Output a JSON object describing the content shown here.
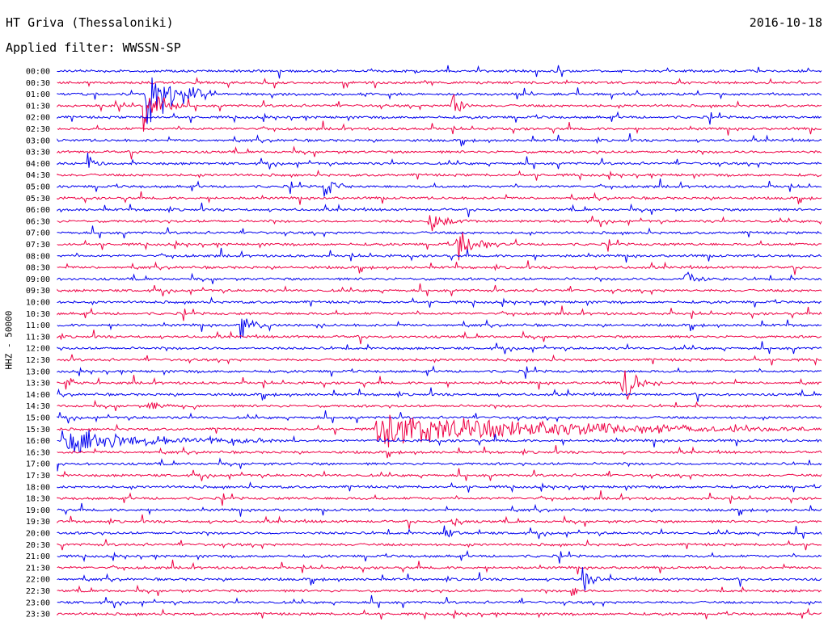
{
  "header": {
    "station": "HT Griva (Thessaloniki)",
    "date": "2016-10-18",
    "filter_label": "Applied filter: WWSSN-SP"
  },
  "colors": {
    "even_trace": "#0000ee",
    "odd_trace": "#ee0044"
  },
  "chart_data": {
    "type": "line",
    "title": "HT Griva (Thessaloniki)",
    "ylabel": "HHZ - 50000",
    "grid": false,
    "row_labels": [
      "00:00",
      "00:30",
      "01:00",
      "01:30",
      "02:00",
      "02:30",
      "03:00",
      "03:30",
      "04:00",
      "04:30",
      "05:00",
      "05:30",
      "06:00",
      "06:30",
      "07:00",
      "07:30",
      "08:00",
      "08:30",
      "09:00",
      "09:30",
      "10:00",
      "10:30",
      "11:00",
      "11:30",
      "12:00",
      "12:30",
      "13:00",
      "13:30",
      "14:00",
      "14:30",
      "15:00",
      "15:30",
      "16:00",
      "16:30",
      "17:00",
      "17:30",
      "18:00",
      "18:30",
      "19:00",
      "19:30",
      "20:00",
      "20:30",
      "21:00",
      "21:30",
      "22:00",
      "22:30",
      "23:00",
      "23:30"
    ],
    "row_minutes": 30,
    "events": [
      {
        "row": 2,
        "minute": 3.5,
        "amplitude": 1.0,
        "duration": 2.5
      },
      {
        "row": 3,
        "minute": 3.4,
        "amplitude": 0.7,
        "duration": 1.5
      },
      {
        "row": 3,
        "minute": 15.5,
        "amplitude": 0.35,
        "duration": 0.8
      },
      {
        "row": 8,
        "minute": 1.2,
        "amplitude": 0.3,
        "duration": 0.8
      },
      {
        "row": 10,
        "minute": 10.5,
        "amplitude": 0.35,
        "duration": 1.0
      },
      {
        "row": 13,
        "minute": 14.6,
        "amplitude": 0.35,
        "duration": 1.5
      },
      {
        "row": 15,
        "minute": 15.7,
        "amplitude": 0.6,
        "duration": 1.5
      },
      {
        "row": 18,
        "minute": 24.6,
        "amplitude": 0.3,
        "duration": 1.2
      },
      {
        "row": 22,
        "minute": 7.2,
        "amplitude": 0.4,
        "duration": 1.0
      },
      {
        "row": 27,
        "minute": 22.2,
        "amplitude": 0.8,
        "duration": 1.0
      },
      {
        "row": 27,
        "minute": 0.3,
        "amplitude": 0.3,
        "duration": 0.6
      },
      {
        "row": 29,
        "minute": 3.6,
        "amplitude": 0.3,
        "duration": 0.8
      },
      {
        "row": 31,
        "minute": 12.5,
        "amplitude": 0.5,
        "duration": 17.0
      },
      {
        "row": 32,
        "minute": 0.2,
        "amplitude": 0.4,
        "duration": 9.0
      },
      {
        "row": 39,
        "minute": 15.5,
        "amplitude": 0.2,
        "duration": 0.8
      },
      {
        "row": 40,
        "minute": 15.2,
        "amplitude": 0.25,
        "duration": 0.8
      },
      {
        "row": 44,
        "minute": 20.6,
        "amplitude": 0.4,
        "duration": 0.8
      },
      {
        "row": 45,
        "minute": 20.2,
        "amplitude": 0.25,
        "duration": 0.5
      }
    ]
  }
}
